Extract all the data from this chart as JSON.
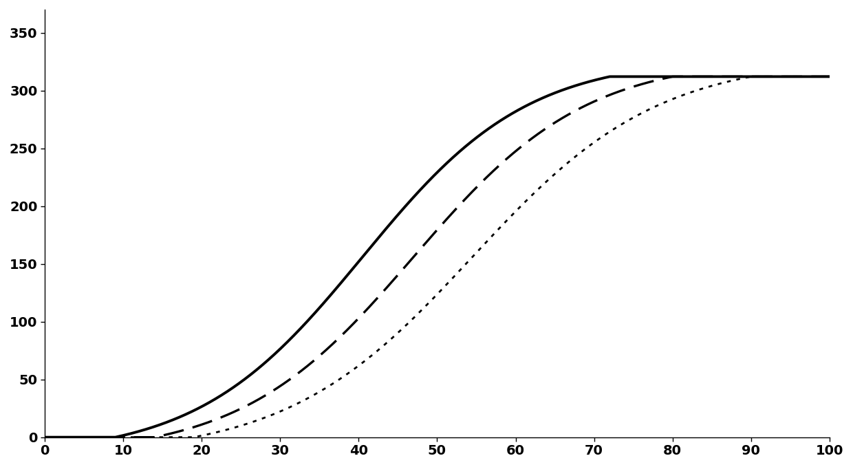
{
  "title": "",
  "xlim": [
    0,
    100
  ],
  "ylim": [
    0,
    370
  ],
  "yticks": [
    0.0,
    50.0,
    100.0,
    150.0,
    200.0,
    250.0,
    300.0,
    350.0
  ],
  "xticks": [
    0,
    10,
    20,
    30,
    40,
    50,
    60,
    70,
    80,
    90,
    100
  ],
  "line_color": "#000000",
  "background_color": "#ffffff",
  "plateau": 312,
  "curves": [
    {
      "start": 9,
      "end_rise": 72,
      "style": "solid",
      "lw": 2.8
    },
    {
      "start": 14,
      "end_rise": 80,
      "style": "dashed",
      "lw": 2.4
    },
    {
      "start": 19,
      "end_rise": 90,
      "style": "dotted",
      "lw": 2.0
    }
  ]
}
